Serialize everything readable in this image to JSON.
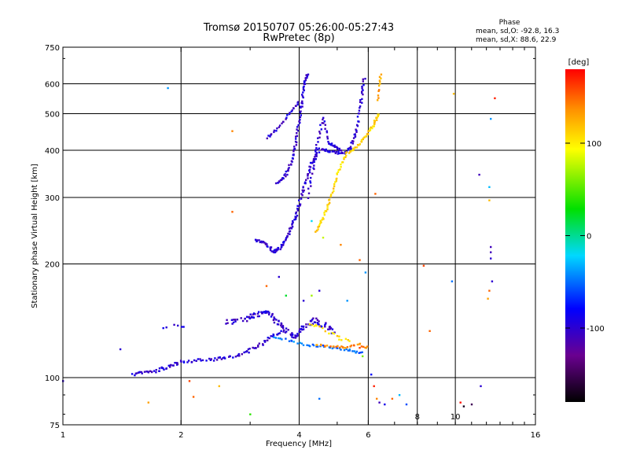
{
  "chart_data": {
    "type": "scatter",
    "title": "Tromsø 20150707 05:26:00-05:27:43",
    "subtitle": "RwPretec (8p)",
    "xlabel": "Frequency [MHz]",
    "ylabel": "Stationary phase Virtual Height [km]",
    "x_scale": "log",
    "y_scale": "log",
    "xlim": [
      1,
      16
    ],
    "ylim": [
      75,
      750
    ],
    "x_ticks": [
      1,
      2,
      4,
      6,
      16
    ],
    "x_tick_labels": [
      "1",
      "2",
      "4",
      "6",
      "16"
    ],
    "x_minor_ticks": [
      3,
      5,
      7,
      8,
      9,
      10,
      11,
      12,
      13,
      14,
      15
    ],
    "x_minor_labels": [
      "8",
      "10"
    ],
    "y_ticks": [
      75,
      100,
      200,
      300,
      400,
      500,
      600,
      750
    ],
    "y_tick_labels": [
      "75",
      "100",
      "200",
      "300",
      "400",
      "500",
      "600",
      "750"
    ],
    "x_grid": [
      2,
      4,
      6,
      8,
      10
    ],
    "y_grid": [
      100,
      200,
      300,
      400,
      500,
      600
    ],
    "grid": true,
    "stats": {
      "heading": "Phase",
      "line_o": "mean, sd,O: -92.8, 16.3",
      "line_x": "mean, sd,X: 88.6, 22.9"
    },
    "colorbar": {
      "label": "[deg]",
      "range": [
        -180,
        180
      ],
      "ticks": [
        100,
        0,
        -100
      ],
      "tick_labels": [
        "100",
        "0",
        "-100"
      ],
      "colormap": "rainbow: black-purple-blue-cyan-green-yellow-orange-red"
    },
    "traces": [
      {
        "pts": [
          [
            1.5,
            102
          ],
          [
            1.6,
            103
          ],
          [
            1.7,
            104
          ],
          [
            1.8,
            106
          ],
          [
            1.9,
            108
          ],
          [
            2.0,
            110
          ],
          [
            2.2,
            111
          ],
          [
            2.4,
            112
          ],
          [
            2.6,
            113
          ],
          [
            2.8,
            115
          ],
          [
            3.0,
            118
          ],
          [
            3.2,
            123
          ],
          [
            3.4,
            129
          ],
          [
            3.6,
            132
          ]
        ],
        "phase": -100,
        "n": 110,
        "spread": 0.02
      },
      {
        "pts": [
          [
            3.1,
            232
          ],
          [
            3.3,
            226
          ],
          [
            3.45,
            215
          ],
          [
            3.6,
            222
          ],
          [
            3.75,
            240
          ],
          [
            3.9,
            262
          ],
          [
            4.0,
            290
          ],
          [
            4.15,
            330
          ],
          [
            4.3,
            370
          ],
          [
            4.5,
            402
          ],
          [
            4.8,
            398
          ],
          [
            5.2,
            392
          ],
          [
            5.4,
            408
          ],
          [
            5.6,
            450
          ],
          [
            5.75,
            540
          ],
          [
            5.85,
            625
          ]
        ],
        "phase": -100,
        "n": 190,
        "spread": 0.015
      },
      {
        "pts": [
          [
            3.5,
            325
          ],
          [
            3.7,
            345
          ],
          [
            3.85,
            382
          ],
          [
            3.95,
            440
          ],
          [
            4.05,
            520
          ],
          [
            4.12,
            600
          ],
          [
            4.2,
            640
          ]
        ],
        "phase": -100,
        "n": 80,
        "spread": 0.012
      },
      {
        "pts": [
          [
            3.3,
            430
          ],
          [
            3.55,
            460
          ],
          [
            3.8,
            505
          ],
          [
            4.0,
            540
          ]
        ],
        "phase": -100,
        "n": 28,
        "spread": 0.01
      },
      {
        "pts": [
          [
            4.2,
            300
          ],
          [
            4.35,
            360
          ],
          [
            4.45,
            420
          ],
          [
            4.6,
            490
          ],
          [
            4.75,
            420
          ],
          [
            4.9,
            410
          ],
          [
            5.1,
            400
          ]
        ],
        "phase": -100,
        "n": 55,
        "spread": 0.012
      },
      {
        "pts": [
          [
            4.4,
            242
          ],
          [
            4.6,
            265
          ],
          [
            4.8,
            300
          ],
          [
            5.0,
            345
          ],
          [
            5.25,
            390
          ],
          [
            5.6,
            410
          ],
          [
            5.95,
            440
          ],
          [
            6.2,
            470
          ],
          [
            6.35,
            500
          ]
        ],
        "phase": 110,
        "n": 95,
        "spread": 0.012
      },
      {
        "pts": [
          [
            2.6,
            140
          ],
          [
            2.9,
            143
          ],
          [
            3.1,
            146
          ],
          [
            3.3,
            150
          ],
          [
            3.5,
            140
          ],
          [
            3.7,
            133
          ],
          [
            3.9,
            128
          ],
          [
            4.1,
            136
          ],
          [
            4.35,
            142
          ],
          [
            4.6,
            138
          ],
          [
            4.9,
            132
          ]
        ],
        "phase": -100,
        "n": 130,
        "spread": 0.03
      },
      {
        "pts": [
          [
            3.4,
            128
          ],
          [
            3.8,
            125
          ],
          [
            4.2,
            122
          ],
          [
            4.6,
            121
          ],
          [
            5.0,
            120
          ],
          [
            5.4,
            118
          ],
          [
            5.8,
            116
          ]
        ],
        "phase": -50,
        "n": 45,
        "spread": 0.015
      },
      {
        "pts": [
          [
            4.4,
            122
          ],
          [
            4.8,
            121
          ],
          [
            5.2,
            120
          ],
          [
            5.6,
            123
          ],
          [
            6.0,
            120
          ]
        ],
        "phase": 140,
        "n": 30,
        "spread": 0.015
      },
      {
        "pts": [
          [
            4.2,
            140
          ],
          [
            4.6,
            135
          ],
          [
            5.0,
            128
          ],
          [
            5.4,
            124
          ]
        ],
        "phase": 110,
        "n": 18,
        "spread": 0.02
      },
      {
        "pts": [
          [
            1.75,
            135
          ],
          [
            1.95,
            138
          ],
          [
            2.05,
            136
          ]
        ],
        "phase": -100,
        "n": 6,
        "spread": 0.01
      },
      {
        "pts": [
          [
            6.35,
            540
          ],
          [
            6.4,
            600
          ],
          [
            6.45,
            640
          ]
        ],
        "phase": 130,
        "n": 12,
        "spread": 0.01
      }
    ],
    "scatter_points": [
      {
        "x": 1.0,
        "y": 98,
        "phase": -100
      },
      {
        "x": 1.4,
        "y": 119,
        "phase": -100
      },
      {
        "x": 1.85,
        "y": 585,
        "phase": -40
      },
      {
        "x": 1.65,
        "y": 86,
        "phase": 130
      },
      {
        "x": 2.15,
        "y": 89,
        "phase": 150
      },
      {
        "x": 2.1,
        "y": 98,
        "phase": 160
      },
      {
        "x": 2.5,
        "y": 95,
        "phase": 120
      },
      {
        "x": 2.7,
        "y": 450,
        "phase": 140
      },
      {
        "x": 2.7,
        "y": 275,
        "phase": 150
      },
      {
        "x": 3.0,
        "y": 80,
        "phase": 40
      },
      {
        "x": 3.3,
        "y": 175,
        "phase": 150
      },
      {
        "x": 3.55,
        "y": 185,
        "phase": -100
      },
      {
        "x": 3.7,
        "y": 165,
        "phase": 20
      },
      {
        "x": 4.1,
        "y": 160,
        "phase": -100
      },
      {
        "x": 4.3,
        "y": 260,
        "phase": -20
      },
      {
        "x": 4.3,
        "y": 165,
        "phase": 70
      },
      {
        "x": 4.5,
        "y": 170,
        "phase": -100
      },
      {
        "x": 4.6,
        "y": 235,
        "phase": 80
      },
      {
        "x": 4.5,
        "y": 88,
        "phase": -50
      },
      {
        "x": 5.1,
        "y": 225,
        "phase": 140
      },
      {
        "x": 5.3,
        "y": 160,
        "phase": -40
      },
      {
        "x": 5.7,
        "y": 205,
        "phase": 150
      },
      {
        "x": 5.9,
        "y": 190,
        "phase": -40
      },
      {
        "x": 5.7,
        "y": 120,
        "phase": 160
      },
      {
        "x": 5.8,
        "y": 114,
        "phase": 60
      },
      {
        "x": 6.25,
        "y": 307,
        "phase": 150
      },
      {
        "x": 6.1,
        "y": 102,
        "phase": -80
      },
      {
        "x": 6.2,
        "y": 95,
        "phase": 170
      },
      {
        "x": 6.3,
        "y": 88,
        "phase": 140
      },
      {
        "x": 6.4,
        "y": 86,
        "phase": -110
      },
      {
        "x": 6.6,
        "y": 85,
        "phase": -90
      },
      {
        "x": 6.9,
        "y": 88,
        "phase": 150
      },
      {
        "x": 7.2,
        "y": 90,
        "phase": -30
      },
      {
        "x": 7.5,
        "y": 85,
        "phase": -60
      },
      {
        "x": 8.3,
        "y": 198,
        "phase": 160
      },
      {
        "x": 8.6,
        "y": 133,
        "phase": 150
      },
      {
        "x": 9.8,
        "y": 180,
        "phase": -50
      },
      {
        "x": 9.9,
        "y": 565,
        "phase": 120
      },
      {
        "x": 10.3,
        "y": 86,
        "phase": 175
      },
      {
        "x": 10.5,
        "y": 84,
        "phase": -170
      },
      {
        "x": 11.0,
        "y": 85,
        "phase": -150
      },
      {
        "x": 11.5,
        "y": 345,
        "phase": -110
      },
      {
        "x": 11.6,
        "y": 95,
        "phase": -100
      },
      {
        "x": 12.3,
        "y": 485,
        "phase": -40
      },
      {
        "x": 12.2,
        "y": 320,
        "phase": -30
      },
      {
        "x": 12.2,
        "y": 295,
        "phase": 120
      },
      {
        "x": 12.3,
        "y": 222,
        "phase": -110
      },
      {
        "x": 12.3,
        "y": 215,
        "phase": -110
      },
      {
        "x": 12.3,
        "y": 207,
        "phase": -100
      },
      {
        "x": 12.4,
        "y": 180,
        "phase": -100
      },
      {
        "x": 12.2,
        "y": 170,
        "phase": 150
      },
      {
        "x": 12.1,
        "y": 162,
        "phase": 130
      },
      {
        "x": 12.6,
        "y": 550,
        "phase": 170
      }
    ]
  }
}
